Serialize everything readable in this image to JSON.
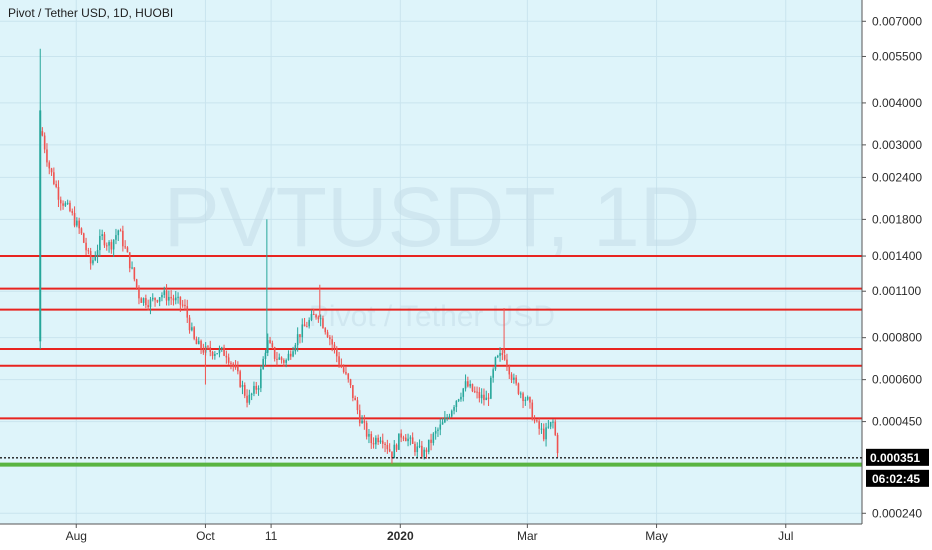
{
  "header": {
    "title": "Pivot / Tether USD, 1D, HUOBI"
  },
  "watermark": {
    "symbol": "PVTUSDT, 1D",
    "name": "Pivot / Tether USD"
  },
  "colors": {
    "background": "#def4fa",
    "grid": "#c9e4ee",
    "up": "#26a69a",
    "down": "#ef5350",
    "level_line": "#e8231f",
    "support_line": "#59b441",
    "axis_border": "#555555"
  },
  "price_axis": {
    "labels": [
      "0.007000",
      "0.005500",
      "0.004000",
      "0.003000",
      "0.002400",
      "0.001800",
      "0.001400",
      "0.001100",
      "0.000800",
      "0.000600",
      "0.000450",
      "0.000240"
    ]
  },
  "time_axis": {
    "labels": [
      "Aug",
      "Oct",
      "11",
      "2020",
      "Mar",
      "May",
      "Jul"
    ]
  },
  "last_price": {
    "label": "0.000351",
    "value": 0.000351
  },
  "countdown": {
    "label": "06:02:45"
  },
  "chart_data": {
    "type": "candlestick",
    "title": "Pivot / Tether USD, 1D, HUOBI",
    "scale": "log",
    "ylim": [
      0.000223,
      0.0081
    ],
    "x_range": [
      "2019-06-26",
      "2020-08-06"
    ],
    "horizontal_levels": [
      0.0014,
      0.00112,
      0.00097,
      0.00074,
      0.00066,
      0.00046
    ],
    "support_level": 0.000335,
    "points": [
      [
        "2019-07-16",
        0.0032
      ],
      [
        "2019-07-19",
        0.0026
      ],
      [
        "2019-07-24",
        0.0021
      ],
      [
        "2019-07-29",
        0.0019
      ],
      [
        "2019-08-03",
        0.00165
      ],
      [
        "2019-08-08",
        0.00132
      ],
      [
        "2019-08-13",
        0.0016
      ],
      [
        "2019-08-17",
        0.0015
      ],
      [
        "2019-08-21",
        0.00168
      ],
      [
        "2019-08-26",
        0.00135
      ],
      [
        "2019-08-31",
        0.00105
      ],
      [
        "2019-09-05",
        0.00102
      ],
      [
        "2019-09-10",
        0.00108
      ],
      [
        "2019-09-15",
        0.00105
      ],
      [
        "2019-09-21",
        0.00099
      ],
      [
        "2019-09-26",
        0.00077
      ],
      [
        "2019-10-01",
        0.00073
      ],
      [
        "2019-10-06",
        0.00073
      ],
      [
        "2019-10-11",
        0.00072
      ],
      [
        "2019-10-16",
        0.00062
      ],
      [
        "2019-10-21",
        0.00052
      ],
      [
        "2019-10-26",
        0.00058
      ],
      [
        "2019-10-30",
        0.00078
      ],
      [
        "2019-11-03",
        0.0007
      ],
      [
        "2019-11-08",
        0.00068
      ],
      [
        "2019-11-13",
        0.0008
      ],
      [
        "2019-11-18",
        0.00088
      ],
      [
        "2019-11-23",
        0.00095
      ],
      [
        "2019-11-28",
        0.00082
      ],
      [
        "2019-12-03",
        0.00068
      ],
      [
        "2019-12-08",
        0.00058
      ],
      [
        "2019-12-13",
        0.00046
      ],
      [
        "2019-12-18",
        0.00039
      ],
      [
        "2019-12-23",
        0.00041
      ],
      [
        "2019-12-28",
        0.00036
      ],
      [
        "2020-01-02",
        0.00042
      ],
      [
        "2020-01-07",
        0.00038
      ],
      [
        "2020-01-12",
        0.00036
      ],
      [
        "2020-01-17",
        0.00041
      ],
      [
        "2020-01-22",
        0.00045
      ],
      [
        "2020-01-27",
        0.00052
      ],
      [
        "2020-02-01",
        0.00058
      ],
      [
        "2020-02-06",
        0.00054
      ],
      [
        "2020-02-11",
        0.00052
      ],
      [
        "2020-02-15",
        0.00068
      ],
      [
        "2020-02-19",
        0.00072
      ],
      [
        "2020-02-24",
        0.00058
      ],
      [
        "2020-03-01",
        0.00052
      ],
      [
        "2020-03-05",
        0.00044
      ],
      [
        "2020-03-09",
        0.00041
      ],
      [
        "2020-03-13",
        0.00045
      ],
      [
        "2020-03-16",
        0.000351
      ]
    ]
  }
}
